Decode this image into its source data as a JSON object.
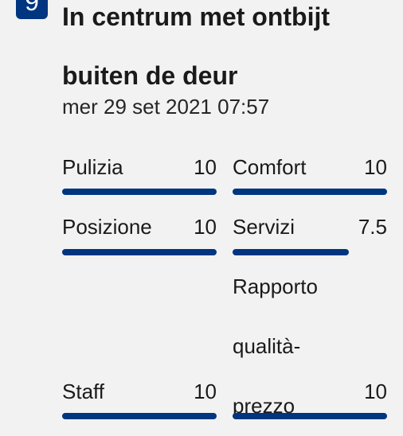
{
  "review": {
    "score": "9",
    "title": "In centrum met ontbijt buiten de deur",
    "date": "mer 29 set 2021 07:57"
  },
  "ratings": [
    {
      "label": "Pulizia",
      "value": "10",
      "fraction": 1.0
    },
    {
      "label": "Comfort",
      "value": "10",
      "fraction": 1.0
    },
    {
      "label": "Posizione",
      "value": "10",
      "fraction": 1.0
    },
    {
      "label": "Servizi",
      "value": "7.5",
      "fraction": 0.75
    },
    {
      "label": "Staff",
      "value": "10",
      "fraction": 1.0
    },
    {
      "label": "Rapporto qualità-prezzo",
      "value": "10",
      "fraction": 1.0
    }
  ],
  "colors": {
    "accent": "#003580",
    "background": "#f2f2f2",
    "text": "#1a1a1a"
  }
}
